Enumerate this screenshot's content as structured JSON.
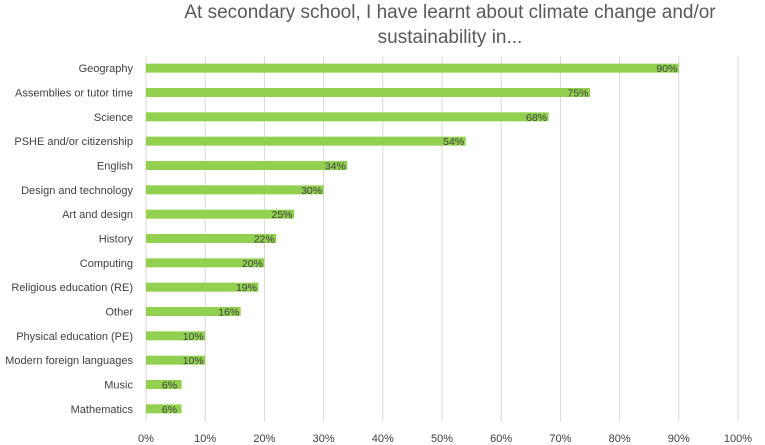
{
  "chart_data": {
    "type": "bar",
    "orientation": "horizontal",
    "title": "At secondary school, I have learnt about climate change and/or sustainability in...",
    "categories": [
      "Geography",
      "Assemblies or tutor time",
      "Science",
      "PSHE and/or citizenship",
      "English",
      "Design and technology",
      "Art and design",
      "History",
      "Computing",
      "Religious education (RE)",
      "Other",
      "Physical education (PE)",
      "Modern foreign languages",
      "Music",
      "Mathematics"
    ],
    "values": [
      90,
      75,
      68,
      54,
      34,
      30,
      25,
      22,
      20,
      19,
      16,
      10,
      10,
      6,
      6
    ],
    "data_labels": [
      "90%",
      "75%",
      "68%",
      "54%",
      "34%",
      "30%",
      "25%",
      "22%",
      "20%",
      "19%",
      "16%",
      "10%",
      "10%",
      "6%",
      "6%"
    ],
    "xlim": [
      0,
      100
    ],
    "x_ticks": [
      "0%",
      "10%",
      "20%",
      "30%",
      "40%",
      "50%",
      "60%",
      "70%",
      "80%",
      "90%",
      "100%"
    ],
    "xlabel": "",
    "ylabel": "",
    "grid": "vertical",
    "legend": "none",
    "bar_color": "#92D050",
    "grid_color": "#D9D9D9"
  }
}
